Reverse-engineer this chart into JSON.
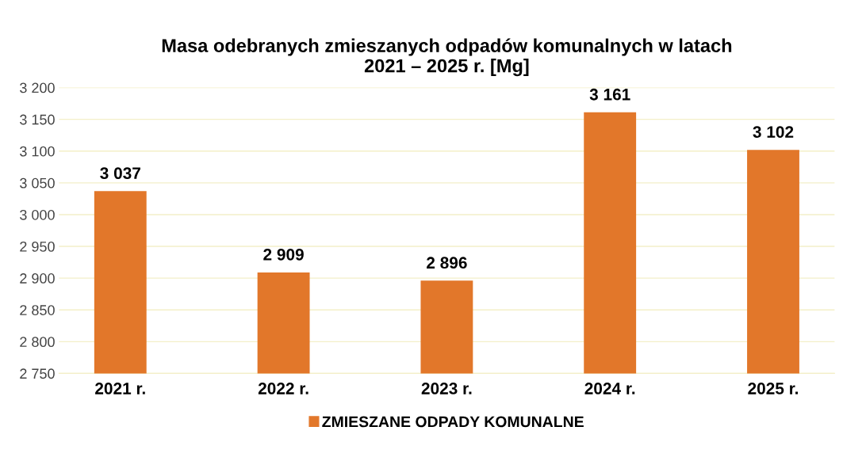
{
  "chart_data": {
    "type": "bar",
    "title": "Masa odebranych zmieszanych odpadów komunalnych w latach\n2021 – 2025 r. [Mg]",
    "categories": [
      "2021 r.",
      "2022 r.",
      "2023 r.",
      "2024 r.",
      "2025 r."
    ],
    "series": [
      {
        "name": "ZMIESZANE ODPADY KOMUNALNE",
        "color": "#e2772a",
        "values": [
          3037,
          2909,
          2896,
          3161,
          3102
        ],
        "value_labels": [
          "3 037",
          "2 909",
          "2 896",
          "3 161",
          "3 102"
        ]
      }
    ],
    "ylim": [
      2750,
      3200
    ],
    "yticks": [
      {
        "value": 2750,
        "label": "2 750"
      },
      {
        "value": 2800,
        "label": "2 800"
      },
      {
        "value": 2850,
        "label": "2 850"
      },
      {
        "value": 2900,
        "label": "2 900"
      },
      {
        "value": 2950,
        "label": "2 950"
      },
      {
        "value": 3000,
        "label": "3 000"
      },
      {
        "value": 3050,
        "label": "3 050"
      },
      {
        "value": 3100,
        "label": "3 100"
      },
      {
        "value": 3150,
        "label": "3 150"
      },
      {
        "value": 3200,
        "label": "3 200"
      }
    ],
    "grid": "y",
    "legend": "bottom"
  }
}
